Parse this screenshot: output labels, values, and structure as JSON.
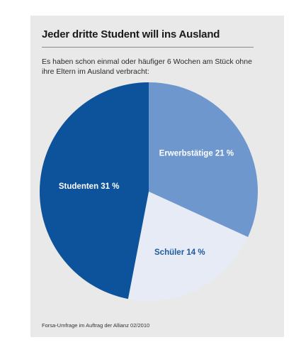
{
  "chart_data": {
    "type": "pie",
    "title": "Jeder dritte Student will ins Ausland",
    "subtitle": "Es haben schon einmal oder häufiger 6 Wochen am Stück ohne ihre Eltern im Ausland verbracht:",
    "slices": [
      {
        "label": "Erwerbstätige",
        "value": 21,
        "value_label": "21 %",
        "color": "#6e97ce",
        "text_color": "#ffffff"
      },
      {
        "label": "Schüler",
        "value": 14,
        "value_label": "14 %",
        "color": "#e6ebf6",
        "text_color": "#1f5aa0"
      },
      {
        "label": "Studenten",
        "value": 31,
        "value_label": "31 %",
        "color": "#0d539c",
        "text_color": "#ffffff"
      }
    ],
    "start": "12 o'clock",
    "direction": "clockwise",
    "source": "Forsa-Umfrage im Auftrag der Allianz 02/2010"
  }
}
